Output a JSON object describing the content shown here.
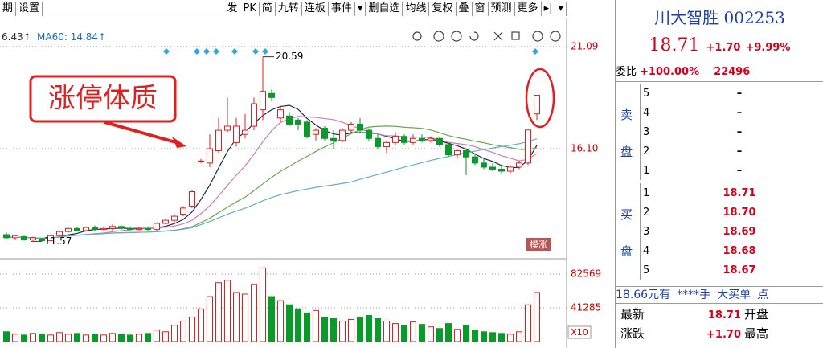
{
  "toolbar_left": [
    "期",
    "设置"
  ],
  "toolbar": [
    "发",
    "PK",
    "简",
    "九转",
    "连板",
    "事件",
    "▾",
    "删自选",
    "均线",
    "复权",
    "叠",
    "窗",
    "预测",
    "更多",
    "▸|",
    "▾"
  ],
  "chart": {
    "legend_prev": "6.43↑",
    "legend_ma60": "MA60: 14.84↑",
    "annotation": "涨停体质",
    "tag": "模涨",
    "volume_unit": "X10",
    "high_label": 20.59,
    "low_label": 11.57,
    "ylim": [
      10.8,
      22.5
    ],
    "yticks": [
      21.09,
      {
        "value": 16.1,
        "label": "16.10"
      }
    ],
    "vlim": [
      0,
      98300
    ],
    "vticks": [
      82569,
      41285
    ],
    "candles": [
      [
        11.9,
        12.0,
        11.7,
        11.75
      ],
      [
        11.75,
        11.9,
        11.65,
        11.85
      ],
      [
        11.8,
        11.85,
        11.6,
        11.65
      ],
      [
        11.65,
        11.8,
        11.6,
        11.75
      ],
      [
        11.7,
        11.75,
        11.57,
        11.6
      ],
      [
        11.6,
        11.9,
        11.6,
        11.85
      ],
      [
        11.85,
        12.1,
        11.8,
        12.05
      ],
      [
        12.05,
        12.25,
        12.0,
        12.2
      ],
      [
        12.2,
        12.3,
        12.05,
        12.1
      ],
      [
        12.1,
        12.3,
        12.05,
        12.25
      ],
      [
        12.25,
        12.35,
        12.1,
        12.15
      ],
      [
        12.15,
        12.3,
        12.1,
        12.2
      ],
      [
        12.2,
        12.4,
        12.1,
        12.3
      ],
      [
        12.3,
        12.35,
        12.15,
        12.2
      ],
      [
        12.2,
        12.3,
        12.1,
        12.15
      ],
      [
        12.15,
        12.25,
        12.05,
        12.2
      ],
      [
        12.2,
        12.3,
        12.1,
        12.15
      ],
      [
        12.15,
        12.5,
        12.1,
        12.45
      ],
      [
        12.45,
        12.7,
        12.4,
        12.6
      ],
      [
        12.6,
        12.9,
        12.5,
        12.8
      ],
      [
        12.9,
        13.3,
        12.8,
        13.2
      ],
      [
        13.3,
        14.1,
        13.2,
        14.0
      ],
      [
        15.5,
        15.6,
        15.4,
        15.5
      ],
      [
        15.4,
        16.8,
        15.2,
        16.1
      ],
      [
        16.0,
        17.6,
        15.9,
        17.0
      ],
      [
        17.0,
        18.6,
        16.9,
        17.2
      ],
      [
        16.4,
        17.6,
        16.2,
        17.2
      ],
      [
        16.8,
        17.8,
        16.6,
        17.0
      ],
      [
        17.2,
        18.6,
        17.0,
        18.3
      ],
      [
        18.0,
        20.59,
        17.5,
        18.9
      ],
      [
        18.8,
        19.0,
        18.4,
        18.6
      ],
      [
        17.6,
        18.2,
        17.4,
        18.0
      ],
      [
        17.7,
        17.9,
        17.2,
        17.3
      ],
      [
        17.5,
        17.6,
        17.0,
        17.3
      ],
      [
        17.4,
        17.5,
        16.6,
        16.7
      ],
      [
        16.8,
        17.1,
        16.5,
        17.0
      ],
      [
        17.1,
        17.2,
        16.5,
        16.6
      ],
      [
        16.6,
        17.0,
        16.1,
        16.5
      ],
      [
        16.5,
        17.1,
        16.4,
        17.0
      ],
      [
        17.0,
        17.4,
        16.9,
        17.3
      ],
      [
        17.3,
        17.6,
        16.9,
        17.0
      ],
      [
        17.0,
        17.1,
        16.5,
        16.6
      ],
      [
        16.6,
        16.8,
        16.1,
        16.2
      ],
      [
        16.2,
        16.5,
        15.9,
        16.4
      ],
      [
        16.4,
        16.9,
        16.3,
        16.7
      ],
      [
        16.7,
        16.8,
        16.3,
        16.4
      ],
      [
        16.4,
        16.8,
        16.3,
        16.6
      ],
      [
        16.6,
        16.8,
        16.4,
        16.5
      ],
      [
        16.5,
        16.7,
        16.4,
        16.6
      ],
      [
        16.6,
        16.7,
        16.2,
        16.3
      ],
      [
        16.3,
        16.4,
        15.7,
        15.8
      ],
      [
        15.8,
        16.1,
        15.6,
        16.0
      ],
      [
        16.0,
        16.1,
        14.8,
        15.7
      ],
      [
        15.7,
        15.8,
        15.3,
        15.4
      ],
      [
        15.4,
        15.6,
        15.1,
        15.2
      ],
      [
        15.2,
        15.4,
        15.0,
        15.1
      ],
      [
        15.1,
        15.3,
        14.9,
        15.0
      ],
      [
        15.0,
        15.3,
        14.9,
        15.2
      ],
      [
        15.2,
        15.5,
        15.1,
        15.4
      ],
      [
        15.4,
        17.01,
        15.3,
        17.01
      ],
      [
        17.8,
        18.71,
        17.5,
        18.71
      ]
    ],
    "volumes": [
      12000,
      9000,
      8000,
      10000,
      9000,
      8000,
      11000,
      9000,
      10000,
      8000,
      9000,
      8000,
      10000,
      9000,
      8000,
      9000,
      10000,
      14000,
      12000,
      20000,
      25000,
      30000,
      40000,
      55000,
      72000,
      75000,
      60000,
      58000,
      70000,
      90000,
      55000,
      50000,
      45000,
      40000,
      35000,
      38000,
      30000,
      28000,
      25000,
      27000,
      30000,
      32000,
      28000,
      25000,
      22000,
      20000,
      24000,
      21000,
      18000,
      16000,
      22000,
      15000,
      20000,
      14000,
      12000,
      11000,
      10000,
      9000,
      12000,
      45000,
      60000
    ]
  },
  "quote": {
    "name": "川大智胜",
    "code": "002253",
    "price": "18.71",
    "change": "+1.70",
    "pct": "+9.99%",
    "ratio_label": "委比",
    "ratio": "+100.00%",
    "ratio_vol": "22496",
    "sell_label": [
      "卖",
      "盘"
    ],
    "sell": [
      [
        "5",
        "–"
      ],
      [
        "4",
        "–"
      ],
      [
        "3",
        "–"
      ],
      [
        "2",
        "–"
      ],
      [
        "1",
        "–"
      ]
    ],
    "buy_label": [
      "买",
      "盘"
    ],
    "buy": [
      [
        "1",
        "18.71"
      ],
      [
        "2",
        "18.70"
      ],
      [
        "3",
        "18.69"
      ],
      [
        "4",
        "18.68"
      ],
      [
        "5",
        "18.67"
      ]
    ],
    "bigorder": [
      "18.66元有",
      "****手",
      "大买单",
      "点"
    ],
    "rows": [
      [
        "最新",
        "18.71",
        "开盘"
      ],
      [
        "涨跌",
        "+1.70",
        "最高"
      ]
    ]
  }
}
